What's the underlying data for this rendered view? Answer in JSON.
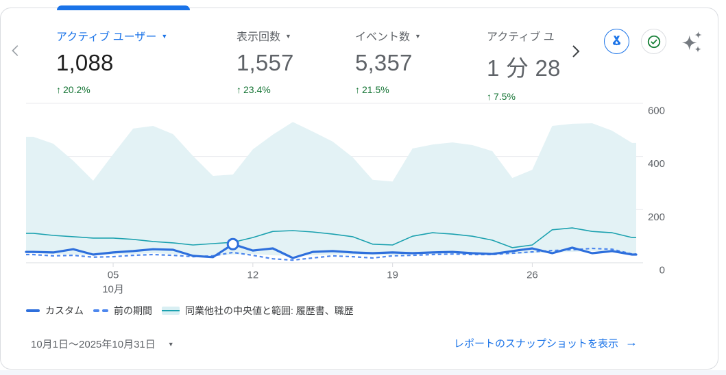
{
  "header": {
    "metrics": [
      {
        "label": "アクティブ ユーザー",
        "value": "1,088",
        "delta_arrow": "↑",
        "delta": "20.2%",
        "selected": true,
        "has_dropdown": true
      },
      {
        "label": "表示回数",
        "value": "1,557",
        "delta_arrow": "↑",
        "delta": "23.4%",
        "selected": false,
        "has_dropdown": true
      },
      {
        "label": "イベント数",
        "value": "5,357",
        "delta_arrow": "↑",
        "delta": "21.5%",
        "selected": false,
        "has_dropdown": true
      },
      {
        "label": "アクティブ ユ",
        "value": "1 分 28",
        "delta_arrow": "↑",
        "delta": "7.5%",
        "selected": false,
        "has_dropdown": false
      }
    ],
    "action_icons": [
      "benchmark-medal-icon",
      "verified-check-icon",
      "sparkle-icon"
    ]
  },
  "legend": {
    "items": [
      {
        "label": "カスタム",
        "style": "solid-line",
        "color": "#2e6fdc"
      },
      {
        "label": "前の期間",
        "style": "dashed-line",
        "color": "#4d87ee"
      },
      {
        "label": "同業他社の中央値と範囲: 履歴書、職歴",
        "style": "band-with-median-line",
        "color": "#1ba1af",
        "band_color": "#e3f2f5"
      }
    ]
  },
  "footer": {
    "date_range": "10月1日〜2025年10月31日",
    "link_label": "レポートのスナップショットを表示",
    "link_arrow": "→"
  },
  "colors": {
    "accent_blue": "#1a73e8",
    "positive_green": "#137333",
    "text_gray": "#5f6368",
    "custom_line": "#2e6fdc",
    "previous_line": "#4d87ee",
    "benchmark_teal": "#1ba1af",
    "benchmark_band": "#e3f2f5",
    "grid": "#e8eaed"
  },
  "chart_data": {
    "type": "line",
    "title": "",
    "xlabel": "10月",
    "ylabel": "",
    "ylim": [
      0,
      600
    ],
    "grid": true,
    "legend_position": "bottom",
    "x_days": [
      1,
      2,
      3,
      4,
      5,
      6,
      7,
      8,
      9,
      10,
      11,
      12,
      13,
      14,
      15,
      16,
      17,
      18,
      19,
      20,
      21,
      22,
      23,
      24,
      25,
      26,
      27,
      28,
      29,
      30,
      31
    ],
    "x_axis": {
      "tick_days": [
        5,
        12,
        19,
        26
      ],
      "tick_labels": [
        "05",
        "12",
        "19",
        "26"
      ],
      "month_label": "10月"
    },
    "y_axis": {
      "ticks": [
        0,
        200,
        400,
        600
      ]
    },
    "series": [
      {
        "name": "カスタム",
        "style": "solid",
        "color": "#2e6fdc",
        "values": [
          41,
          39,
          51,
          31,
          39,
          44,
          51,
          49,
          26,
          21,
          70,
          46,
          54,
          18,
          41,
          44,
          39,
          36,
          39,
          36,
          39,
          41,
          36,
          33,
          44,
          54,
          36,
          57,
          36,
          44,
          31
        ]
      },
      {
        "name": "前の期間",
        "style": "dashed",
        "color": "#4d87ee",
        "values": [
          31,
          26,
          28,
          21,
          23,
          28,
          31,
          28,
          23,
          26,
          39,
          28,
          15,
          10,
          18,
          26,
          23,
          18,
          26,
          28,
          31,
          33,
          31,
          31,
          36,
          41,
          46,
          49,
          54,
          51,
          33
        ]
      },
      {
        "name": "同業他社の中央値と範囲: 履歴書、職歴",
        "style": "band-with-median",
        "color": "#1ba1af",
        "band_color": "#e3f2f5",
        "median": [
          111,
          103,
          98,
          93,
          93,
          88,
          80,
          75,
          67,
          72,
          77,
          95,
          118,
          121,
          116,
          108,
          98,
          70,
          67,
          100,
          113,
          108,
          100,
          85,
          57,
          67,
          124,
          131,
          118,
          113,
          95
        ],
        "upper": [
          474,
          448,
          384,
          309,
          409,
          505,
          515,
          484,
          402,
          327,
          332,
          427,
          482,
          530,
          494,
          456,
          397,
          312,
          306,
          430,
          445,
          453,
          443,
          420,
          319,
          350,
          515,
          523,
          525,
          497,
          451
        ],
        "lower": [
          36,
          33,
          31,
          28,
          31,
          33,
          36,
          33,
          28,
          26,
          31,
          33,
          28,
          26,
          28,
          31,
          31,
          28,
          28,
          31,
          33,
          33,
          31,
          31,
          33,
          36,
          39,
          41,
          44,
          41,
          33
        ]
      }
    ],
    "highlight_point": {
      "series": "カスタム",
      "day": 11,
      "value": 70
    }
  }
}
